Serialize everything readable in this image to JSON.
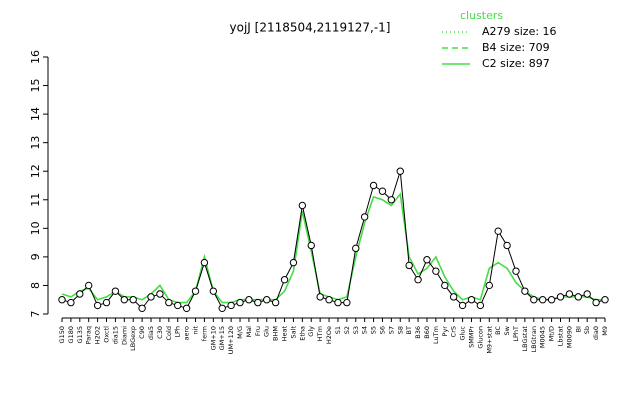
{
  "chart_data": {
    "type": "line",
    "title": "yojJ [2118504,2119127,-1]",
    "categories": [
      "G150",
      "G180",
      "G135",
      "Paraq",
      "H2O2",
      "Oxctl",
      "dia15",
      "Diami",
      "LBGexp",
      "C90",
      "dia5",
      "C30",
      "Cold",
      "LPh",
      "aero",
      "nit",
      "ferm",
      "GM+10",
      "GM+15",
      "UM+120",
      "M/G",
      "Mal",
      "Fru",
      "Glu",
      "BHM",
      "Heat",
      "Salt",
      "Etha",
      "Gly",
      "HTm",
      "H2Oe",
      "S1",
      "S2",
      "S3",
      "S4",
      "S5",
      "S6",
      "S7",
      "S8",
      "BT",
      "B36",
      "B60",
      "LuTm",
      "Pyr",
      "CrS",
      "Gluc",
      "SMMPr",
      "Glucon",
      "M9+stat",
      "BC",
      "Sw",
      "LPhT",
      "LBGstat",
      "LBGtran",
      "M0045",
      "Mt/D",
      "Lbstat",
      "M0090",
      "BI",
      "Sb",
      "dia0",
      "M9"
    ],
    "series": [
      {
        "color": "#000000",
        "markers": true,
        "values": [
          7.5,
          7.4,
          7.7,
          8.0,
          7.3,
          7.4,
          7.8,
          7.5,
          7.5,
          7.2,
          7.6,
          7.7,
          7.4,
          7.3,
          7.2,
          7.8,
          8.8,
          7.8,
          7.2,
          7.3,
          7.4,
          7.5,
          7.4,
          7.5,
          7.4,
          8.2,
          8.8,
          10.8,
          9.4,
          7.6,
          7.5,
          7.4,
          7.4,
          9.3,
          10.4,
          11.5,
          11.3,
          11.0,
          12.0,
          8.7,
          8.2,
          8.9,
          8.5,
          8.0,
          7.6,
          7.3,
          7.5,
          7.3,
          8.0,
          9.9,
          9.4,
          8.5,
          7.8,
          7.5,
          7.5,
          7.5,
          7.6,
          7.7,
          7.6,
          7.7,
          7.4,
          7.5
        ]
      },
      {
        "color": "#44dd44",
        "markers": false,
        "values": [
          7.7,
          7.6,
          7.8,
          7.9,
          7.5,
          7.6,
          7.8,
          7.6,
          7.6,
          7.5,
          7.7,
          8.0,
          7.5,
          7.4,
          7.4,
          7.8,
          9.0,
          7.8,
          7.4,
          7.4,
          7.5,
          7.5,
          7.5,
          7.5,
          7.5,
          7.8,
          8.5,
          10.6,
          9.2,
          7.7,
          7.6,
          7.5,
          7.6,
          9.0,
          10.2,
          11.1,
          11.0,
          10.8,
          11.2,
          9.0,
          8.4,
          8.6,
          9.0,
          8.3,
          7.8,
          7.5,
          7.6,
          7.5,
          8.6,
          8.8,
          8.6,
          8.1,
          7.8,
          7.6,
          7.5,
          7.5,
          7.6,
          7.6,
          7.6,
          7.6,
          7.5,
          7.5
        ]
      }
    ],
    "ylim": [
      7,
      16
    ],
    "yticks": [
      7,
      8,
      9,
      10,
      11,
      12,
      13,
      14,
      15,
      16
    ],
    "legend_title": "clusters",
    "legend_color": "#44dd44",
    "legend": [
      {
        "label": "A279 size: 16",
        "dash": "1,3"
      },
      {
        "label": "B4 size: 709",
        "dash": "6,4"
      },
      {
        "label": "C2 size: 897",
        "dash": "none"
      }
    ]
  }
}
